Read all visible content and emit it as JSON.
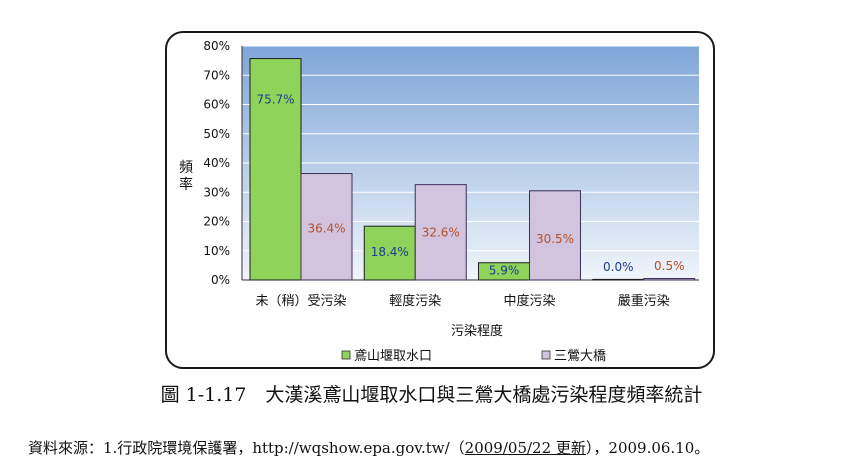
{
  "chart_data": {
    "type": "bar",
    "title": "",
    "xlabel": "污染程度",
    "ylabel": "頻率",
    "ylim": [
      0,
      80
    ],
    "yticks": [
      "0%",
      "10%",
      "20%",
      "30%",
      "40%",
      "50%",
      "60%",
      "70%",
      "80%"
    ],
    "categories": [
      "未（稍）受污染",
      "輕度污染",
      "中度污染",
      "嚴重污染"
    ],
    "series": [
      {
        "name": "鳶山堰取水口",
        "values": [
          75.7,
          18.4,
          5.9,
          0.0
        ],
        "labels": [
          "75.7%",
          "18.4%",
          "5.9%",
          "0.0%"
        ],
        "color": "#8fd35a",
        "label_color": "#1f3c8c"
      },
      {
        "name": "三鶯大橋",
        "values": [
          36.4,
          32.6,
          30.5,
          0.5
        ],
        "labels": [
          "36.4%",
          "32.6%",
          "30.5%",
          "0.5%"
        ],
        "color": "#d2c4de",
        "label_color": "#b5502a"
      }
    ],
    "grid": true,
    "legend": "bottom",
    "plot_background": "#8fb2de"
  },
  "caption": "圖 1-1.17　大漢溪鳶山堰取水口與三鶯大橋處污染程度頻率統計",
  "source": {
    "prefix": "資料來源：1.行政院環境保護署，http://wqshow.epa.gov.tw/（",
    "date_updated": "2009/05/22 更新",
    "suffix": "），2009.06.10。"
  }
}
